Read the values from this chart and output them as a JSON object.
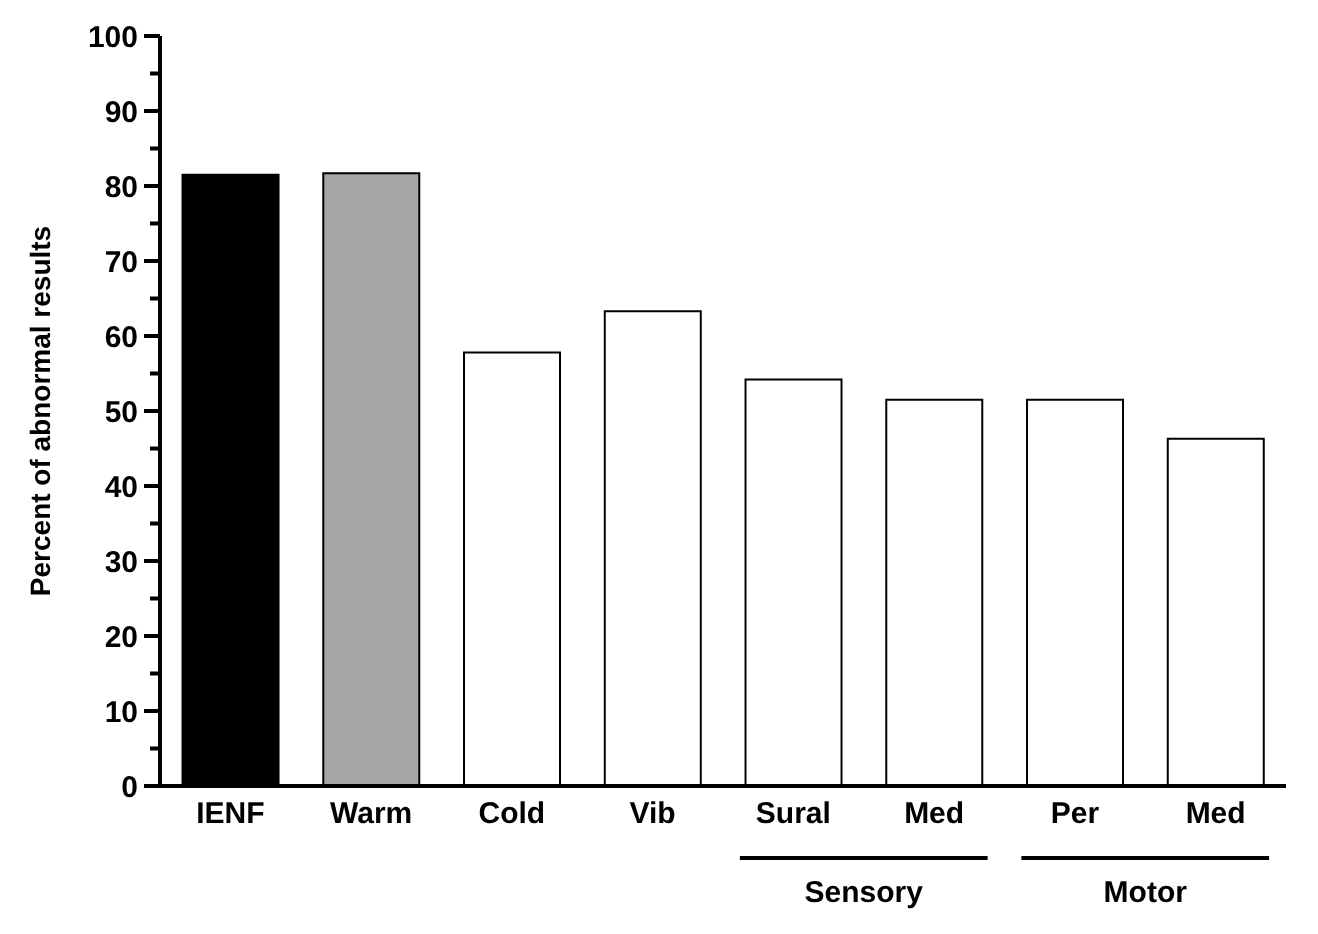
{
  "chart_data": {
    "type": "bar",
    "ylabel": "Percent of abnormal results",
    "categories": [
      "IENF",
      "Warm",
      "Cold",
      "Vib",
      "Sural",
      "Med",
      "Per",
      "Med"
    ],
    "values": [
      81.5,
      81.7,
      57.8,
      63.3,
      54.2,
      51.5,
      51.5,
      46.3
    ],
    "colors": [
      "#000000",
      "#a6a6a6",
      "#ffffff",
      "#ffffff",
      "#ffffff",
      "#ffffff",
      "#ffffff",
      "#ffffff"
    ],
    "ylim": [
      0,
      100
    ],
    "yticks": [
      0,
      {
        "value": 5,
        "label": null
      },
      10,
      {
        "value": 15,
        "label": null
      },
      20,
      {
        "value": 25,
        "label": null
      },
      30,
      {
        "value": 35,
        "label": null
      },
      40,
      {
        "value": 45,
        "label": null
      },
      50,
      {
        "value": 55,
        "label": null
      },
      60,
      {
        "value": 65,
        "label": null
      },
      70,
      {
        "value": 75,
        "label": null
      },
      80,
      {
        "value": 85,
        "label": null
      },
      90,
      {
        "value": 95,
        "label": null
      },
      100
    ],
    "annotations": [
      "Sensory",
      "Motor"
    ],
    "grid": false,
    "legend": false
  }
}
